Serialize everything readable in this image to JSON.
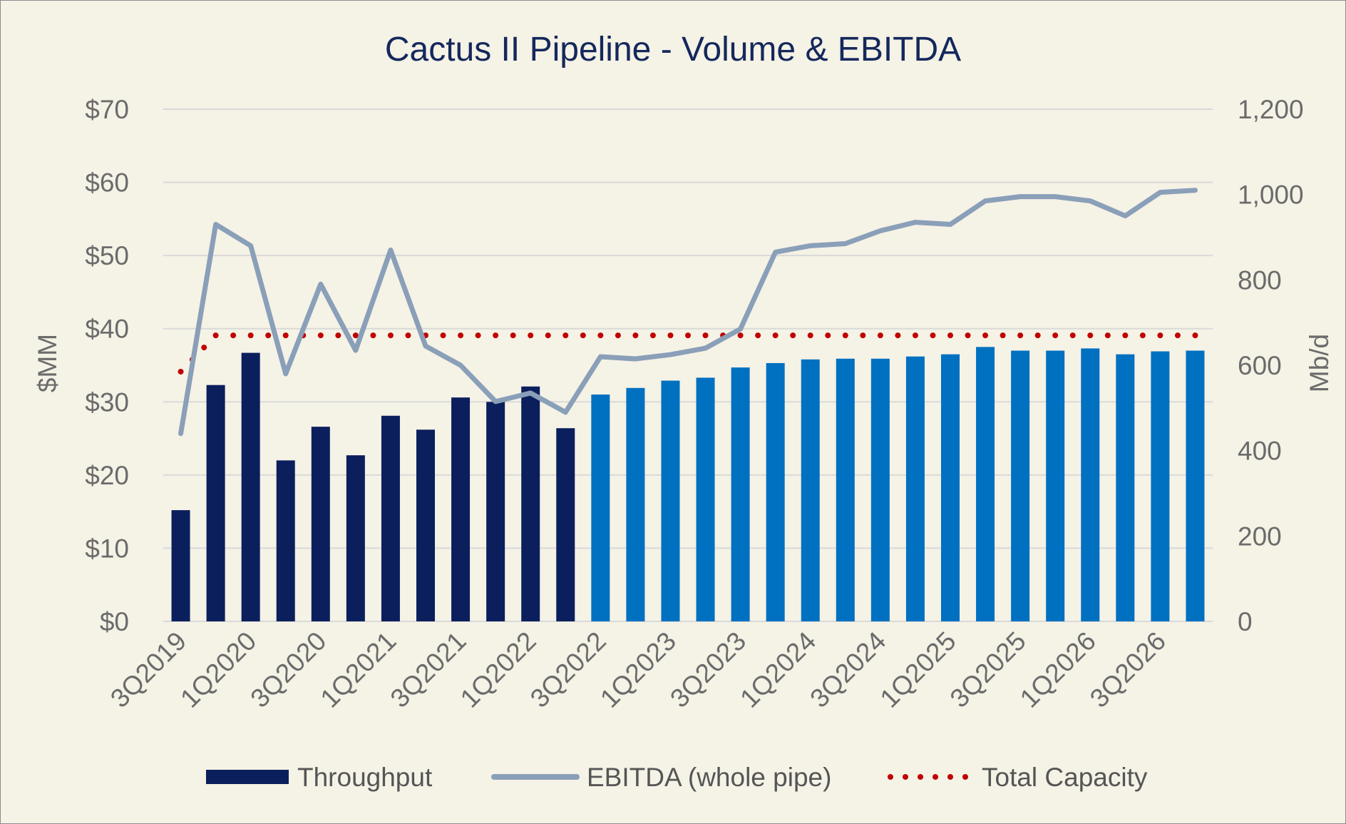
{
  "chart_data": {
    "type": "bar",
    "title": "Cactus II Pipeline - Volume & EBITDA",
    "ylabel_left": "$MM",
    "ylabel_right": "Mb/d",
    "ylim_left": [
      0,
      70
    ],
    "ylim_right": [
      0,
      1200
    ],
    "yticks_left": [
      "$0",
      "$10",
      "$20",
      "$30",
      "$40",
      "$50",
      "$60",
      "$70"
    ],
    "yticks_right": [
      "0",
      "200",
      "400",
      "600",
      "800",
      "1,000",
      "1,200"
    ],
    "grid": true,
    "legend_position": "bottom",
    "categories": [
      "3Q2019",
      "4Q2019",
      "1Q2020",
      "2Q2020",
      "3Q2020",
      "4Q2020",
      "1Q2021",
      "2Q2021",
      "3Q2021",
      "4Q2021",
      "1Q2022",
      "2Q2022",
      "3Q2022",
      "4Q2022",
      "1Q2023",
      "2Q2023",
      "3Q2023",
      "4Q2023",
      "1Q2024",
      "2Q2024",
      "3Q2024",
      "4Q2024",
      "1Q2025",
      "2Q2025",
      "3Q2025",
      "4Q2025",
      "1Q2026",
      "2Q2026",
      "3Q2026",
      "4Q2026"
    ],
    "xtick_labels": [
      "3Q2019",
      "1Q2020",
      "3Q2020",
      "1Q2021",
      "3Q2021",
      "1Q2022",
      "3Q2022",
      "1Q2023",
      "3Q2023",
      "1Q2024",
      "3Q2024",
      "1Q2025",
      "3Q2025",
      "1Q2026",
      "3Q2026"
    ],
    "series": [
      {
        "name": "Throughput",
        "kind": "bar",
        "axis": "left",
        "historical_count": 12,
        "values": [
          15.2,
          32.3,
          36.7,
          22.0,
          26.6,
          22.7,
          28.1,
          26.2,
          30.6,
          30.0,
          32.1,
          26.4,
          31.0,
          31.9,
          32.9,
          33.3,
          34.7,
          35.3,
          35.8,
          35.9,
          35.9,
          36.2,
          36.5,
          37.5,
          37.0,
          37.0,
          37.3,
          36.5,
          36.9,
          37.0
        ]
      },
      {
        "name": "EBITDA (whole pipe)",
        "kind": "line",
        "axis": "right",
        "values": [
          440,
          930,
          880,
          580,
          790,
          635,
          870,
          645,
          600,
          515,
          535,
          490,
          620,
          615,
          625,
          640,
          685,
          865,
          880,
          885,
          915,
          935,
          930,
          985,
          995,
          995,
          985,
          950,
          1005,
          1010
        ]
      },
      {
        "name": "Total Capacity",
        "kind": "dotted-line",
        "axis": "right",
        "values": [
          585,
          670,
          670,
          670,
          670,
          670,
          670,
          670,
          670,
          670,
          670,
          670,
          670,
          670,
          670,
          670,
          670,
          670,
          670,
          670,
          670,
          670,
          670,
          670,
          670,
          670,
          670,
          670,
          670,
          670
        ]
      }
    ]
  },
  "colors": {
    "bar_historical": "#0b1f5c",
    "bar_projected": "#0070c0",
    "ebitda_line": "#8a9fb8",
    "capacity_dots": "#c00000",
    "background": "#f5f2e6",
    "title": "#14285c"
  }
}
